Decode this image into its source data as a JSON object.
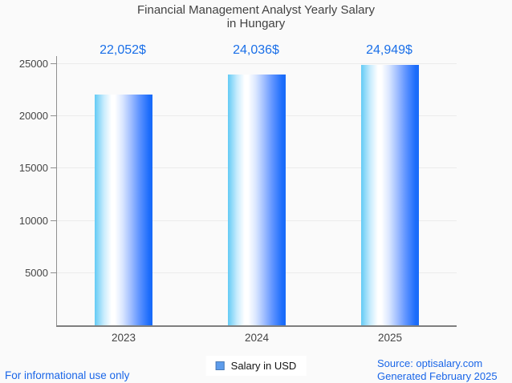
{
  "chart_data": {
    "type": "bar",
    "title": "Financial Management Analyst Yearly Salary in Hungary",
    "title_line1": "Financial Management Analyst Yearly Salary",
    "title_line2": "in Hungary",
    "categories": [
      "2023",
      "2024",
      "2025"
    ],
    "values": [
      22052,
      24036,
      24949
    ],
    "value_labels": [
      "22,052$",
      "24,036$",
      "24,949$"
    ],
    "series": [
      {
        "name": "Salary in USD",
        "values": [
          22052,
          24036,
          24949
        ]
      }
    ],
    "xlabel": "",
    "ylabel": "",
    "ylim": [
      0,
      25000
    ],
    "y_ticks": [
      5000,
      10000,
      15000,
      20000,
      25000
    ],
    "grid": "horizontal",
    "legend": {
      "label": "Salary in USD",
      "position": "bottom-center"
    }
  },
  "footer": {
    "disclaimer": "For informational use only",
    "source": "Source: optisalary.com",
    "generated": "Generated February 2025"
  },
  "colors": {
    "background": "#fafafa",
    "title_text": "#424242",
    "axis_text": "#454545",
    "axis_line": "#8f8f8f",
    "gridline": "#ebebeb",
    "value_label_blue": "#1a6fe8",
    "footer_blue": "#1a66e8",
    "legend_swatch_fill": "#5d9cec",
    "legend_swatch_border": "#4a7ab5",
    "bar_gradient": [
      [
        "#63cbf5",
        "0%"
      ],
      [
        "#c9ecfd",
        "16%"
      ],
      [
        "#ffffff",
        "29%"
      ],
      [
        "#ffffff",
        "35%"
      ],
      [
        "#dbe7ff",
        "48%"
      ],
      [
        "#a3c0ff",
        "62%"
      ],
      [
        "#5c92ff",
        "78%"
      ],
      [
        "#1d6dfb",
        "94%"
      ],
      [
        "#176af8",
        "100%"
      ]
    ]
  }
}
